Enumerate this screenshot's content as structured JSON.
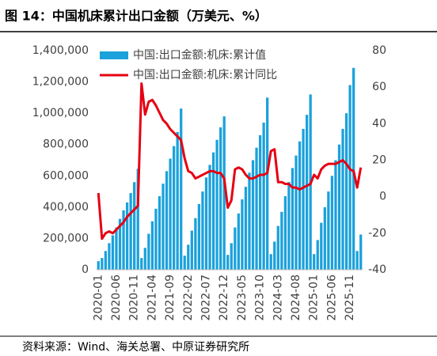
{
  "chart_data": {
    "type": "bar-line",
    "title": "图 14：中国机床累计出口金额（万美元、%）",
    "source": "资料来源：Wind、海关总署、中原证券研究所",
    "categories": [
      "2020-01",
      null,
      null,
      null,
      null,
      "2020-06",
      null,
      null,
      null,
      null,
      "2020-11",
      null,
      null,
      null,
      null,
      "2021-04",
      null,
      null,
      null,
      null,
      "2021-09",
      null,
      null,
      null,
      null,
      "2022-02",
      null,
      null,
      null,
      null,
      "2022-07",
      null,
      null,
      null,
      null,
      "2022-12",
      null,
      null,
      null,
      null,
      "2023-05",
      null,
      null,
      null,
      null,
      "2023-10",
      null,
      null,
      null,
      null,
      "2024-03",
      null,
      null,
      null,
      null,
      "2024-08",
      null,
      null,
      null,
      null,
      "2025-01",
      null,
      null,
      null,
      null,
      "2025-06",
      null,
      null,
      null,
      null,
      "2025-11",
      null,
      null,
      null
    ],
    "series": [
      {
        "name": "中国:出口金额:机床:累计值",
        "color": "#1ba1db",
        "axis": "y",
        "values": [
          55000,
          75000,
          120000,
          170000,
          220000,
          270000,
          325000,
          380000,
          430000,
          490000,
          560000,
          645000,
          75000,
          140000,
          230000,
          310000,
          390000,
          470000,
          550000,
          630000,
          710000,
          790000,
          880000,
          1030000,
          90000,
          160000,
          250000,
          330000,
          420000,
          500000,
          590000,
          670000,
          750000,
          830000,
          910000,
          980000,
          95000,
          170000,
          270000,
          360000,
          450000,
          530000,
          620000,
          700000,
          780000,
          860000,
          940000,
          1100000,
          100000,
          180000,
          280000,
          370000,
          470000,
          560000,
          650000,
          730000,
          820000,
          900000,
          990000,
          1120000,
          100000,
          190000,
          300000,
          400000,
          500000,
          600000,
          700000,
          800000,
          900000,
          1000000,
          1180000,
          1290000,
          120000,
          225000
        ]
      },
      {
        "name": "中国:出口金额:机床:累计同比",
        "color": "#e60012",
        "axis": "y2",
        "values": [
          2,
          -23,
          -20,
          -19,
          -20,
          -18,
          -16,
          -14,
          -11,
          -9,
          -7,
          -5,
          62,
          45,
          52,
          53,
          50,
          46,
          42,
          40,
          37,
          35,
          33,
          31,
          21,
          14,
          13,
          10,
          11,
          12,
          13,
          14,
          14,
          13,
          13,
          10,
          -6,
          -2,
          15,
          16,
          15,
          12,
          10,
          10,
          11,
          12,
          12,
          13,
          25,
          26,
          8,
          8,
          7,
          7,
          5,
          5,
          4,
          5,
          6,
          7,
          12,
          10,
          15,
          17,
          18,
          18,
          18,
          19,
          20,
          18,
          15,
          14,
          5,
          16
        ]
      }
    ],
    "ylim": [
      0,
      1400000
    ],
    "yticks": [
      0,
      {
        "value": 200000,
        "label": "200,000"
      },
      {
        "value": 400000,
        "label": "400,000"
      },
      {
        "value": 600000,
        "label": "600,000"
      },
      {
        "value": 800000,
        "label": "800,000"
      },
      {
        "value": 1000000,
        "label": "1,000,000"
      },
      {
        "value": 1200000,
        "label": "1,200,000"
      },
      {
        "value": 1400000,
        "label": "1,400,000"
      }
    ],
    "y2lim": [
      -40,
      80
    ],
    "y2ticks": [
      -40,
      -20,
      0,
      20,
      40,
      60,
      80
    ],
    "legend": "top"
  }
}
